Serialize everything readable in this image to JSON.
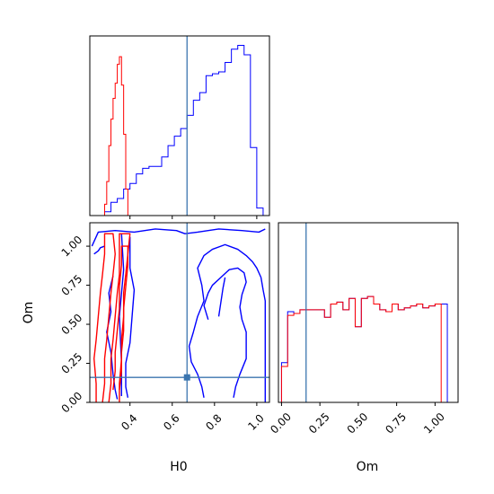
{
  "chart_data": {
    "type": "corner",
    "colors": {
      "blue": "#0000ff",
      "red": "#ff0000",
      "truth": "#3b75af"
    },
    "truth": {
      "H0": 0.67,
      "Om": 0.16
    },
    "panels": [
      {
        "id": "h0_hist",
        "type": "histogram",
        "xlim": [
          0.21,
          1.06
        ],
        "xticks": [
          0.4,
          0.6,
          0.8,
          1.0
        ],
        "series": [
          {
            "color": "blue",
            "edges": [
              0.25,
              0.28,
              0.31,
              0.34,
              0.37,
              0.4,
              0.43,
              0.46,
              0.49,
              0.52,
              0.55,
              0.58,
              0.61,
              0.64,
              0.67,
              0.7,
              0.73,
              0.76,
              0.79,
              0.82,
              0.85,
              0.88,
              0.91,
              0.94,
              0.97,
              1.0,
              1.03
            ],
            "counts": [
              0.0,
              0.02,
              0.07,
              0.09,
              0.14,
              0.17,
              0.22,
              0.25,
              0.26,
              0.26,
              0.31,
              0.37,
              0.42,
              0.46,
              0.53,
              0.61,
              0.65,
              0.74,
              0.75,
              0.76,
              0.81,
              0.88,
              0.9,
              0.85,
              0.36,
              0.04
            ]
          },
          {
            "color": "red",
            "edges": [
              0.28,
              0.29,
              0.3,
              0.31,
              0.32,
              0.33,
              0.34,
              0.35,
              0.36,
              0.37,
              0.38,
              0.39,
              0.4
            ],
            "counts": [
              0.06,
              0.18,
              0.37,
              0.51,
              0.62,
              0.7,
              0.8,
              0.84,
              0.69,
              0.43,
              0.14,
              0.0
            ]
          }
        ]
      },
      {
        "id": "om_hist",
        "type": "histogram",
        "xlim": [
          -0.02,
          1.15
        ],
        "xticks": [
          0.0,
          0.25,
          0.5,
          0.75,
          1.0
        ],
        "xlabel": "Om",
        "series": [
          {
            "color": "blue",
            "edges": [
              0.0,
              0.04,
              0.08,
              0.12,
              0.16,
              0.2,
              0.24,
              0.28,
              0.32,
              0.36,
              0.4,
              0.44,
              0.48,
              0.52,
              0.56,
              0.6,
              0.64,
              0.68,
              0.72,
              0.76,
              0.8,
              0.84,
              0.88,
              0.92,
              0.96,
              1.0,
              1.04,
              1.08
            ],
            "counts": [
              0.21,
              0.48,
              0.47,
              0.49,
              0.49,
              0.49,
              0.49,
              0.45,
              0.52,
              0.53,
              0.49,
              0.55,
              0.4,
              0.55,
              0.56,
              0.52,
              0.49,
              0.48,
              0.52,
              0.49,
              0.5,
              0.51,
              0.52,
              0.5,
              0.51,
              0.52,
              0.52
            ]
          },
          {
            "color": "red",
            "edges": [
              0.0,
              0.04,
              0.08,
              0.12,
              0.16,
              0.2,
              0.24,
              0.28,
              0.32,
              0.36,
              0.4,
              0.44,
              0.48,
              0.52,
              0.56,
              0.6,
              0.64,
              0.68,
              0.72,
              0.76,
              0.8,
              0.84,
              0.88,
              0.92,
              0.96,
              1.0,
              1.04,
              1.08
            ],
            "counts": [
              0.19,
              0.46,
              0.47,
              0.49,
              0.49,
              0.49,
              0.49,
              0.45,
              0.52,
              0.53,
              0.49,
              0.55,
              0.4,
              0.55,
              0.56,
              0.52,
              0.49,
              0.48,
              0.52,
              0.49,
              0.5,
              0.51,
              0.52,
              0.5,
              0.51,
              0.52,
              0.0
            ]
          }
        ]
      },
      {
        "id": "h0_om_contour",
        "type": "contour",
        "xlim": [
          0.21,
          1.06
        ],
        "ylim": [
          0.0,
          1.15
        ],
        "xticks": [
          0.4,
          0.6,
          0.8,
          1.0
        ],
        "yticks": [
          0.0,
          0.25,
          0.5,
          0.75,
          1.0
        ],
        "xlabel": "H0",
        "ylabel": "Om",
        "contours": [
          {
            "color": "blue",
            "points": [
              [
                0.22,
                1.0
              ],
              [
                0.25,
                1.09
              ],
              [
                0.33,
                1.1
              ],
              [
                0.42,
                1.09
              ],
              [
                0.52,
                1.11
              ],
              [
                0.62,
                1.1
              ],
              [
                0.66,
                1.08
              ],
              [
                0.72,
                1.09
              ],
              [
                0.82,
                1.11
              ],
              [
                0.93,
                1.1
              ],
              [
                1.01,
                1.09
              ],
              [
                1.04,
                1.11
              ]
            ]
          },
          {
            "color": "blue",
            "points": [
              [
                0.23,
                0.95
              ],
              [
                0.25,
                0.97
              ],
              [
                0.26,
                0.99
              ],
              [
                0.28,
                1.0
              ]
            ]
          },
          {
            "color": "blue",
            "points": [
              [
                0.32,
                0.81
              ],
              [
                0.3,
                0.7
              ],
              [
                0.31,
                0.58
              ],
              [
                0.29,
                0.45
              ],
              [
                0.31,
                0.32
              ],
              [
                0.32,
                0.18
              ],
              [
                0.33,
                0.08
              ],
              [
                0.34,
                0.02
              ]
            ]
          },
          {
            "color": "blue",
            "points": [
              [
                0.36,
                0.04
              ],
              [
                0.36,
                0.25
              ],
              [
                0.35,
                0.55
              ],
              [
                0.37,
                0.85
              ],
              [
                0.36,
                1.08
              ]
            ]
          },
          {
            "color": "blue",
            "points": [
              [
                0.4,
                1.06
              ],
              [
                0.4,
                0.86
              ],
              [
                0.42,
                0.72
              ],
              [
                0.41,
                0.55
              ],
              [
                0.4,
                0.38
              ],
              [
                0.38,
                0.25
              ],
              [
                0.38,
                0.1
              ],
              [
                0.39,
                0.03
              ]
            ]
          },
          {
            "color": "blue",
            "points": [
              [
                0.75,
                0.03
              ],
              [
                0.74,
                0.1
              ],
              [
                0.72,
                0.18
              ],
              [
                0.69,
                0.26
              ],
              [
                0.68,
                0.36
              ],
              [
                0.7,
                0.45
              ],
              [
                0.72,
                0.55
              ],
              [
                0.75,
                0.65
              ],
              [
                0.74,
                0.75
              ],
              [
                0.72,
                0.86
              ],
              [
                0.75,
                0.94
              ],
              [
                0.79,
                0.98
              ],
              [
                0.85,
                1.01
              ],
              [
                0.91,
                0.98
              ],
              [
                0.95,
                0.94
              ],
              [
                0.98,
                0.9
              ],
              [
                1.0,
                0.86
              ],
              [
                1.02,
                0.8
              ],
              [
                1.03,
                0.72
              ],
              [
                1.04,
                0.65
              ],
              [
                1.04,
                0.55
              ],
              [
                1.04,
                0.45
              ],
              [
                1.04,
                0.35
              ],
              [
                1.04,
                0.25
              ],
              [
                1.04,
                0.15
              ],
              [
                1.04,
                0.04
              ],
              [
                1.04,
                0.0
              ]
            ]
          },
          {
            "color": "blue",
            "points": [
              [
                0.77,
                0.53
              ],
              [
                0.75,
                0.62
              ],
              [
                0.77,
                0.7
              ],
              [
                0.79,
                0.75
              ],
              [
                0.83,
                0.8
              ],
              [
                0.87,
                0.85
              ],
              [
                0.91,
                0.86
              ],
              [
                0.94,
                0.83
              ],
              [
                0.95,
                0.77
              ],
              [
                0.93,
                0.69
              ],
              [
                0.92,
                0.61
              ],
              [
                0.93,
                0.53
              ],
              [
                0.95,
                0.45
              ],
              [
                0.95,
                0.37
              ],
              [
                0.95,
                0.28
              ],
              [
                0.92,
                0.18
              ],
              [
                0.9,
                0.1
              ],
              [
                0.89,
                0.03
              ]
            ]
          },
          {
            "color": "blue",
            "points": [
              [
                0.82,
                0.55
              ],
              [
                0.83,
                0.64
              ],
              [
                0.84,
                0.73
              ],
              [
                0.85,
                0.8
              ]
            ]
          },
          {
            "color": "red",
            "points": [
              [
                0.24,
                0.0
              ],
              [
                0.24,
                0.12
              ],
              [
                0.23,
                0.28
              ],
              [
                0.24,
                0.4
              ],
              [
                0.25,
                0.55
              ],
              [
                0.26,
                0.7
              ],
              [
                0.27,
                0.82
              ],
              [
                0.28,
                0.95
              ],
              [
                0.28,
                1.08
              ],
              [
                0.32,
                1.08
              ],
              [
                0.33,
                0.95
              ],
              [
                0.32,
                0.82
              ],
              [
                0.31,
                0.7
              ],
              [
                0.3,
                0.55
              ],
              [
                0.29,
                0.4
              ],
              [
                0.28,
                0.28
              ],
              [
                0.28,
                0.12
              ],
              [
                0.27,
                0.0
              ]
            ]
          },
          {
            "color": "red",
            "points": [
              [
                0.3,
                0.0
              ],
              [
                0.31,
                0.12
              ],
              [
                0.31,
                0.28
              ],
              [
                0.32,
                0.4
              ],
              [
                0.33,
                0.55
              ],
              [
                0.34,
                0.7
              ],
              [
                0.35,
                0.82
              ],
              [
                0.35,
                0.95
              ],
              [
                0.35,
                1.08
              ],
              [
                0.4,
                1.08
              ],
              [
                0.39,
                0.95
              ],
              [
                0.38,
                0.82
              ],
              [
                0.37,
                0.7
              ],
              [
                0.37,
                0.55
              ],
              [
                0.36,
                0.4
              ],
              [
                0.36,
                0.28
              ],
              [
                0.35,
                0.12
              ],
              [
                0.35,
                0.0
              ]
            ]
          },
          {
            "color": "red",
            "points": [
              [
                0.32,
                0.08
              ],
              [
                0.33,
                0.2
              ],
              [
                0.33,
                0.32
              ],
              [
                0.34,
                0.46
              ],
              [
                0.35,
                0.6
              ],
              [
                0.35,
                0.74
              ],
              [
                0.36,
                0.88
              ],
              [
                0.36,
                1.0
              ],
              [
                0.39,
                1.0
              ],
              [
                0.39,
                0.88
              ],
              [
                0.38,
                0.74
              ],
              [
                0.37,
                0.6
              ],
              [
                0.37,
                0.46
              ],
              [
                0.36,
                0.32
              ],
              [
                0.36,
                0.2
              ],
              [
                0.35,
                0.08
              ]
            ]
          }
        ]
      }
    ]
  }
}
